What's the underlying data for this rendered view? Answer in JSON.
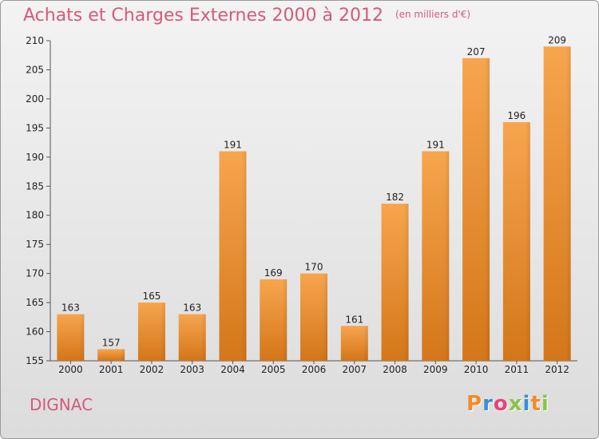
{
  "header": {
    "title": "Achats et Charges Externes 2000 à 2012",
    "subtitle": "(en milliers d'€)"
  },
  "footer": {
    "commune": "DIGNAC",
    "logo_letters": [
      "P",
      "r",
      "o",
      "x",
      "i",
      "t",
      "i"
    ]
  },
  "colors": {
    "title": "#d45a7c",
    "bar_light": "#f7a54e",
    "bar_dark": "#d97a20",
    "logo": [
      "#f28c28",
      "#3a8fd8",
      "#e8447a",
      "#8bc34a",
      "#3a8fd8",
      "#f28c28",
      "#8bc34a"
    ]
  },
  "chart_data": {
    "type": "bar",
    "categories": [
      "2000",
      "2001",
      "2002",
      "2003",
      "2004",
      "2005",
      "2006",
      "2007",
      "2008",
      "2009",
      "2010",
      "2011",
      "2012"
    ],
    "values": [
      163,
      157,
      165,
      163,
      191,
      169,
      170,
      161,
      182,
      191,
      207,
      196,
      209
    ],
    "ylim": [
      155,
      210
    ],
    "yticks": [
      155,
      160,
      165,
      170,
      175,
      180,
      185,
      190,
      195,
      200,
      205,
      210
    ],
    "grid": false,
    "legend": "none"
  }
}
